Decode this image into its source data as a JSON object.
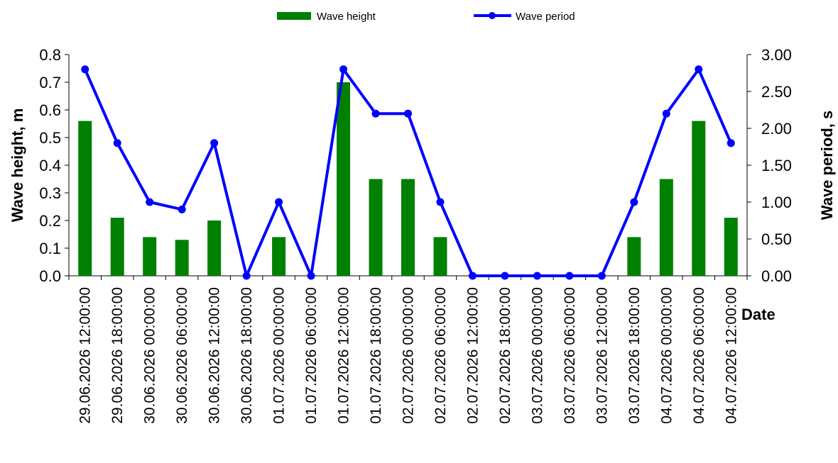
{
  "chart_data": {
    "type": "bar+line",
    "xlabel": "Date",
    "categories": [
      "29.06.2026 12:00:00",
      "29.06.2026 18:00:00",
      "30.06.2026 00:00:00",
      "30.06.2026 06:00:00",
      "30.06.2026 12:00:00",
      "30.06.2026 18:00:00",
      "01.07.2026 00:00:00",
      "01.07.2026 06:00:00",
      "01.07.2026 12:00:00",
      "01.07.2026 18:00:00",
      "02.07.2026 00:00:00",
      "02.07.2026 06:00:00",
      "02.07.2026 12:00:00",
      "02.07.2026 18:00:00",
      "03.07.2026 00:00:00",
      "03.07.2026 06:00:00",
      "03.07.2026 12:00:00",
      "03.07.2026 18:00:00",
      "04.07.2026 00:00:00",
      "04.07.2026 06:00:00",
      "04.07.2026 12:00:00"
    ],
    "series": [
      {
        "name": "Wave height",
        "type": "bar",
        "axis": "left",
        "color": "#008000",
        "values": [
          0.56,
          0.21,
          0.14,
          0.13,
          0.2,
          0,
          0.14,
          0,
          0.7,
          0.35,
          0.35,
          0.14,
          0,
          0,
          0,
          0,
          0,
          0.14,
          0.35,
          0.56,
          0.21
        ]
      },
      {
        "name": "Wave period",
        "type": "line",
        "axis": "right",
        "color": "#0000FF",
        "values": [
          2.8,
          1.8,
          1.0,
          0.9,
          1.8,
          0,
          1.0,
          0,
          2.8,
          2.2,
          2.2,
          1.0,
          0,
          0,
          0,
          0,
          0,
          1.0,
          2.2,
          2.8,
          1.8
        ]
      }
    ],
    "y_left": {
      "label": "Wave height, m",
      "range": [
        0,
        0.8
      ],
      "ticks": [
        "0.0",
        "0.1",
        "0.2",
        "0.3",
        "0.4",
        "0.5",
        "0.6",
        "0.7",
        "0.8"
      ]
    },
    "y_right": {
      "label": "Wave period, s",
      "range": [
        0,
        3
      ],
      "ticks": [
        "0.00",
        "0.50",
        "1.00",
        "1.50",
        "2.00",
        "2.50",
        "3.00"
      ]
    },
    "legend": {
      "position": "top-center",
      "items": [
        "Wave height",
        "Wave period"
      ]
    },
    "grid": false
  }
}
